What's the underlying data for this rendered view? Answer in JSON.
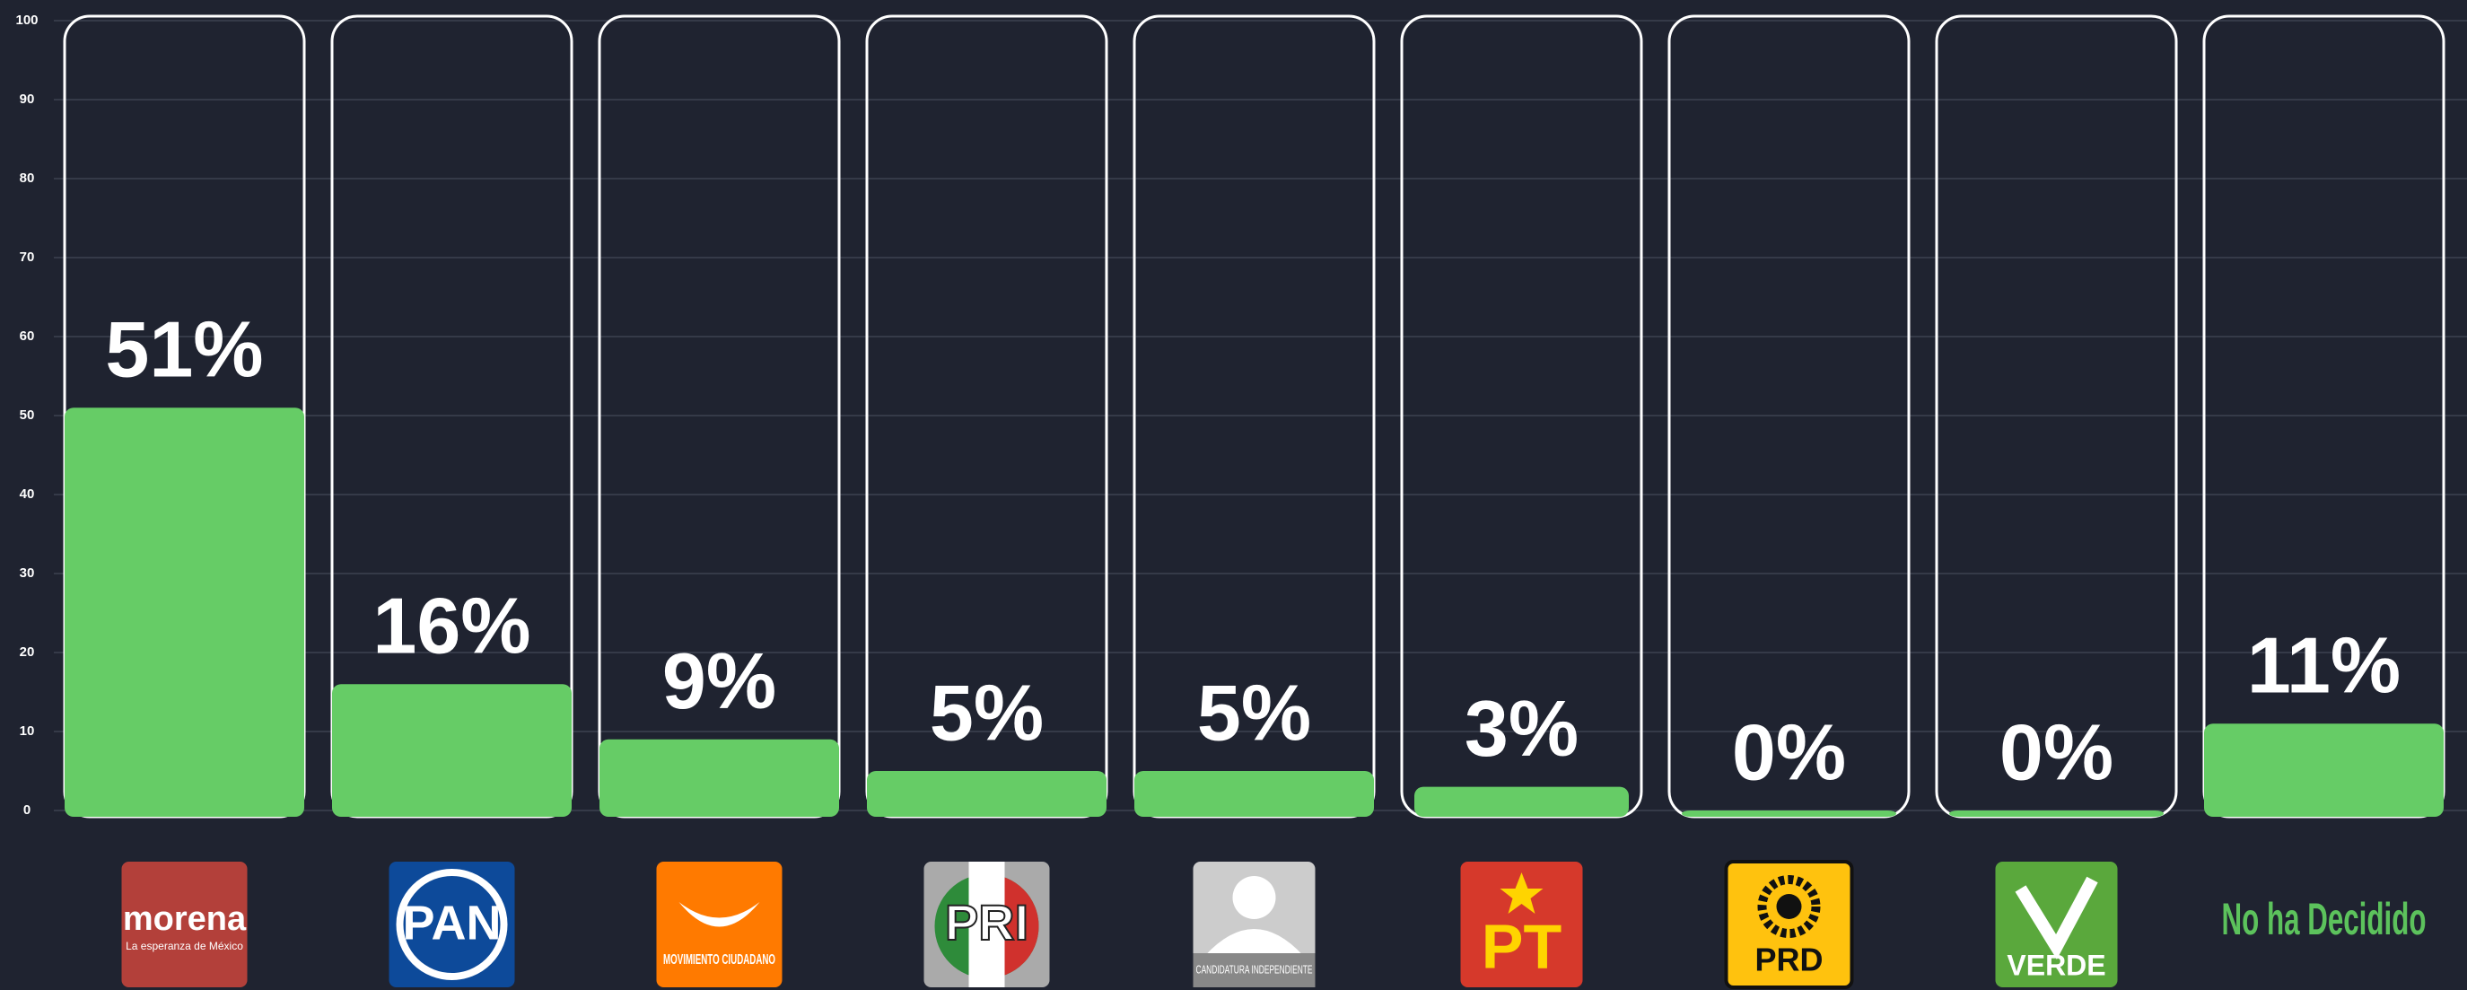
{
  "chart_data": {
    "type": "bar",
    "categories": [
      "morena",
      "PAN",
      "MOVIMIENTO CIUDADANO",
      "PRI",
      "CANDIDATURA INDEPENDIENTE",
      "PT",
      "PRD",
      "VERDE",
      "No ha Decidido"
    ],
    "logo_tagline": "La esperanza de México",
    "values": [
      51,
      16,
      9,
      5,
      5,
      3,
      0,
      0,
      11
    ],
    "value_labels": [
      "51%",
      "16%",
      "9%",
      "5%",
      "5%",
      "3%",
      "0%",
      "0%",
      "11%"
    ],
    "color": "#66cc66",
    "ylim": [
      0,
      100
    ],
    "yticks": [
      0,
      10,
      20,
      30,
      40,
      50,
      60,
      70,
      80,
      90,
      100
    ],
    "grid": true
  }
}
